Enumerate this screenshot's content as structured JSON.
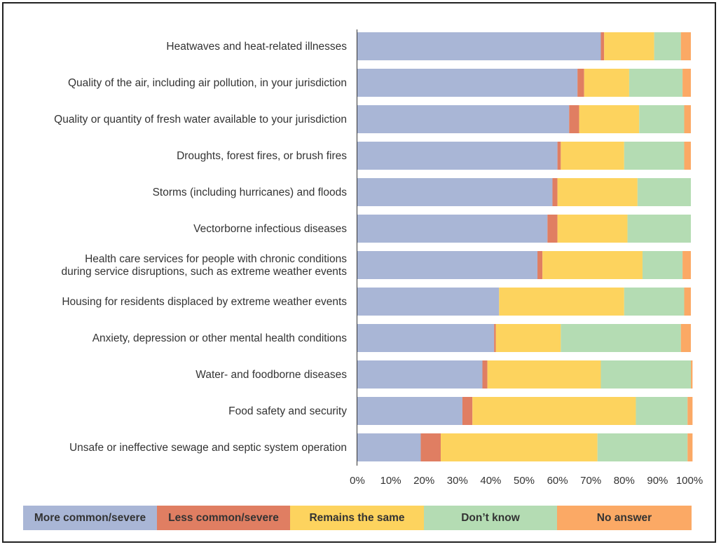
{
  "chart_data": {
    "type": "bar",
    "orientation": "horizontal",
    "stacked": true,
    "title": "",
    "xlabel": "",
    "ylabel": "",
    "xlim": [
      0,
      100
    ],
    "x_ticks": [
      "0%",
      "10%",
      "20%",
      "30%",
      "40%",
      "50%",
      "60%",
      "70%",
      "80%",
      "90%",
      "100%"
    ],
    "grid": false,
    "legend_position": "bottom",
    "categories": [
      [
        "Heatwaves and heat-related illnesses"
      ],
      [
        "Quality of the air, including air pollution, in your jurisdiction"
      ],
      [
        "Quality or quantity of fresh water available to your jurisdiction"
      ],
      [
        "Droughts, forest fires, or brush fires"
      ],
      [
        "Storms (including hurricanes) and floods"
      ],
      [
        "Vectorborne infectious diseases"
      ],
      [
        "Health care services for people with chronic conditions",
        "during service disruptions, such as extreme weather events"
      ],
      [
        "Housing for residents displaced by extreme weather events"
      ],
      [
        "Anxiety, depression or other mental health conditions"
      ],
      [
        "Water- and foodborne diseases"
      ],
      [
        "Food safety and security"
      ],
      [
        "Unsafe or ineffective sewage and septic system operation"
      ]
    ],
    "series": [
      {
        "name": "More common/severe",
        "color": "#a9b6d6",
        "values": [
          73,
          66,
          63.5,
          60,
          58.5,
          57,
          54,
          42.5,
          41,
          37.5,
          31.5,
          19
        ]
      },
      {
        "name": "Less common/severe",
        "color": "#e07e62",
        "values": [
          1,
          2,
          3,
          1,
          1.5,
          3,
          1.5,
          0,
          0.5,
          1.5,
          3,
          6
        ]
      },
      {
        "name": "Remains the same",
        "color": "#fdd35e",
        "values": [
          15,
          13.5,
          18,
          19,
          24,
          21,
          30,
          37.5,
          19.5,
          34,
          49,
          47
        ]
      },
      {
        "name": "Don’t know",
        "color": "#b4dcb3",
        "values": [
          8,
          16,
          13.5,
          18,
          16,
          19,
          12,
          18,
          36,
          27,
          15.5,
          27
        ]
      },
      {
        "name": "No answer",
        "color": "#fba965",
        "values": [
          3,
          2.5,
          2,
          2,
          0,
          0,
          2.5,
          2,
          3,
          0.5,
          1.5,
          1.5
        ]
      }
    ]
  }
}
